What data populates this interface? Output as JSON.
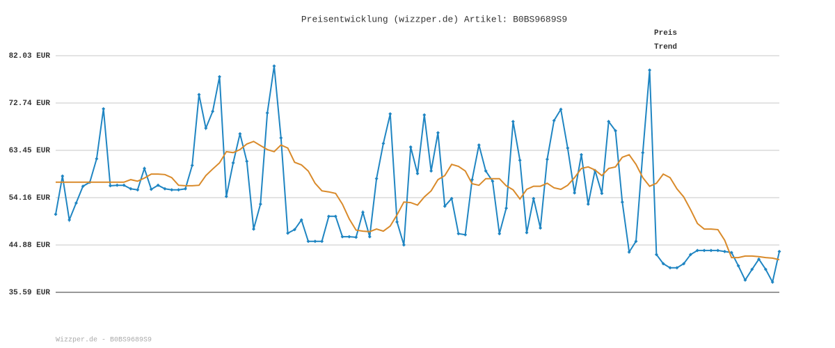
{
  "chart_data": {
    "type": "line",
    "title": "Preisentwicklung (wizzper.de) Artikel: B0BS9689S9",
    "footer": "Wizzper.de - B0BS9689S9",
    "ylim": [
      35.59,
      82.03
    ],
    "yticks": [
      {
        "value": 35.59,
        "label": "35.59 EUR"
      },
      {
        "value": 44.88,
        "label": "44.88 EUR"
      },
      {
        "value": 54.16,
        "label": "54.16 EUR"
      },
      {
        "value": 63.45,
        "label": "63.45 EUR"
      },
      {
        "value": 72.74,
        "label": "72.74 EUR"
      },
      {
        "value": 82.03,
        "label": "82.03 EUR"
      }
    ],
    "grid": true,
    "legend": "top-right",
    "series": [
      {
        "name": "Preis",
        "color": "#1f85c2",
        "markers": true,
        "values": [
          50.9,
          58.4,
          49.8,
          53.1,
          56.4,
          57.2,
          61.8,
          71.6,
          56.5,
          56.6,
          56.6,
          55.9,
          55.7,
          59.9,
          55.8,
          56.6,
          55.9,
          55.7,
          55.7,
          55.9,
          60.5,
          74.4,
          67.8,
          71.1,
          77.9,
          54.4,
          61.0,
          66.7,
          61.3,
          48.0,
          52.9,
          70.8,
          80.0,
          65.9,
          47.2,
          47.9,
          49.8,
          45.6,
          45.6,
          45.6,
          50.5,
          50.5,
          46.5,
          46.5,
          46.4,
          51.3,
          46.5,
          57.9,
          64.8,
          70.6,
          49.4,
          44.9,
          64.1,
          58.9,
          70.4,
          59.4,
          66.9,
          52.5,
          54.0,
          47.1,
          46.9,
          57.7,
          64.5,
          59.4,
          57.4,
          47.1,
          52.1,
          69.1,
          61.5,
          47.3,
          54.0,
          48.2,
          61.7,
          69.3,
          71.5,
          63.9,
          55.1,
          62.6,
          52.9,
          59.5,
          55.0,
          69.1,
          67.3,
          53.3,
          43.5,
          45.6,
          63.0,
          79.2,
          43.0,
          41.2,
          40.4,
          40.4,
          41.2,
          43.0,
          43.8,
          43.8,
          43.8,
          43.8,
          43.6,
          43.4,
          40.8,
          38.0,
          40.1,
          42.1,
          40.1,
          37.6,
          43.6
        ]
      },
      {
        "name": "Trend",
        "color": "#d98a2a",
        "markers": false,
        "values": [
          57.2,
          57.2,
          57.2,
          57.2,
          57.2,
          57.2,
          57.2,
          57.2,
          57.2,
          57.2,
          57.2,
          57.7,
          57.4,
          58.0,
          58.8,
          58.8,
          58.7,
          58.1,
          56.6,
          56.5,
          56.5,
          56.6,
          58.5,
          59.8,
          61.0,
          63.2,
          63.0,
          63.6,
          64.7,
          65.2,
          64.4,
          63.6,
          63.2,
          64.5,
          63.9,
          61.1,
          60.6,
          59.4,
          57.0,
          55.5,
          55.3,
          55.0,
          52.9,
          50.0,
          47.8,
          47.6,
          47.5,
          48.0,
          47.6,
          48.6,
          50.8,
          53.3,
          53.2,
          52.7,
          54.3,
          55.5,
          57.7,
          58.5,
          60.7,
          60.3,
          59.4,
          56.9,
          56.6,
          57.9,
          57.9,
          57.9,
          56.5,
          55.7,
          53.9,
          55.8,
          56.4,
          56.4,
          57.0,
          56.1,
          55.8,
          56.6,
          58.1,
          59.9,
          60.2,
          59.6,
          58.5,
          59.9,
          60.2,
          62.1,
          62.6,
          60.7,
          58.1,
          56.4,
          57.0,
          58.8,
          58.1,
          55.9,
          54.3,
          51.8,
          49.1,
          48.0,
          48.0,
          47.9,
          45.8,
          42.4,
          42.4,
          42.7,
          42.7,
          42.6,
          42.4,
          42.3,
          42.0
        ]
      }
    ]
  }
}
